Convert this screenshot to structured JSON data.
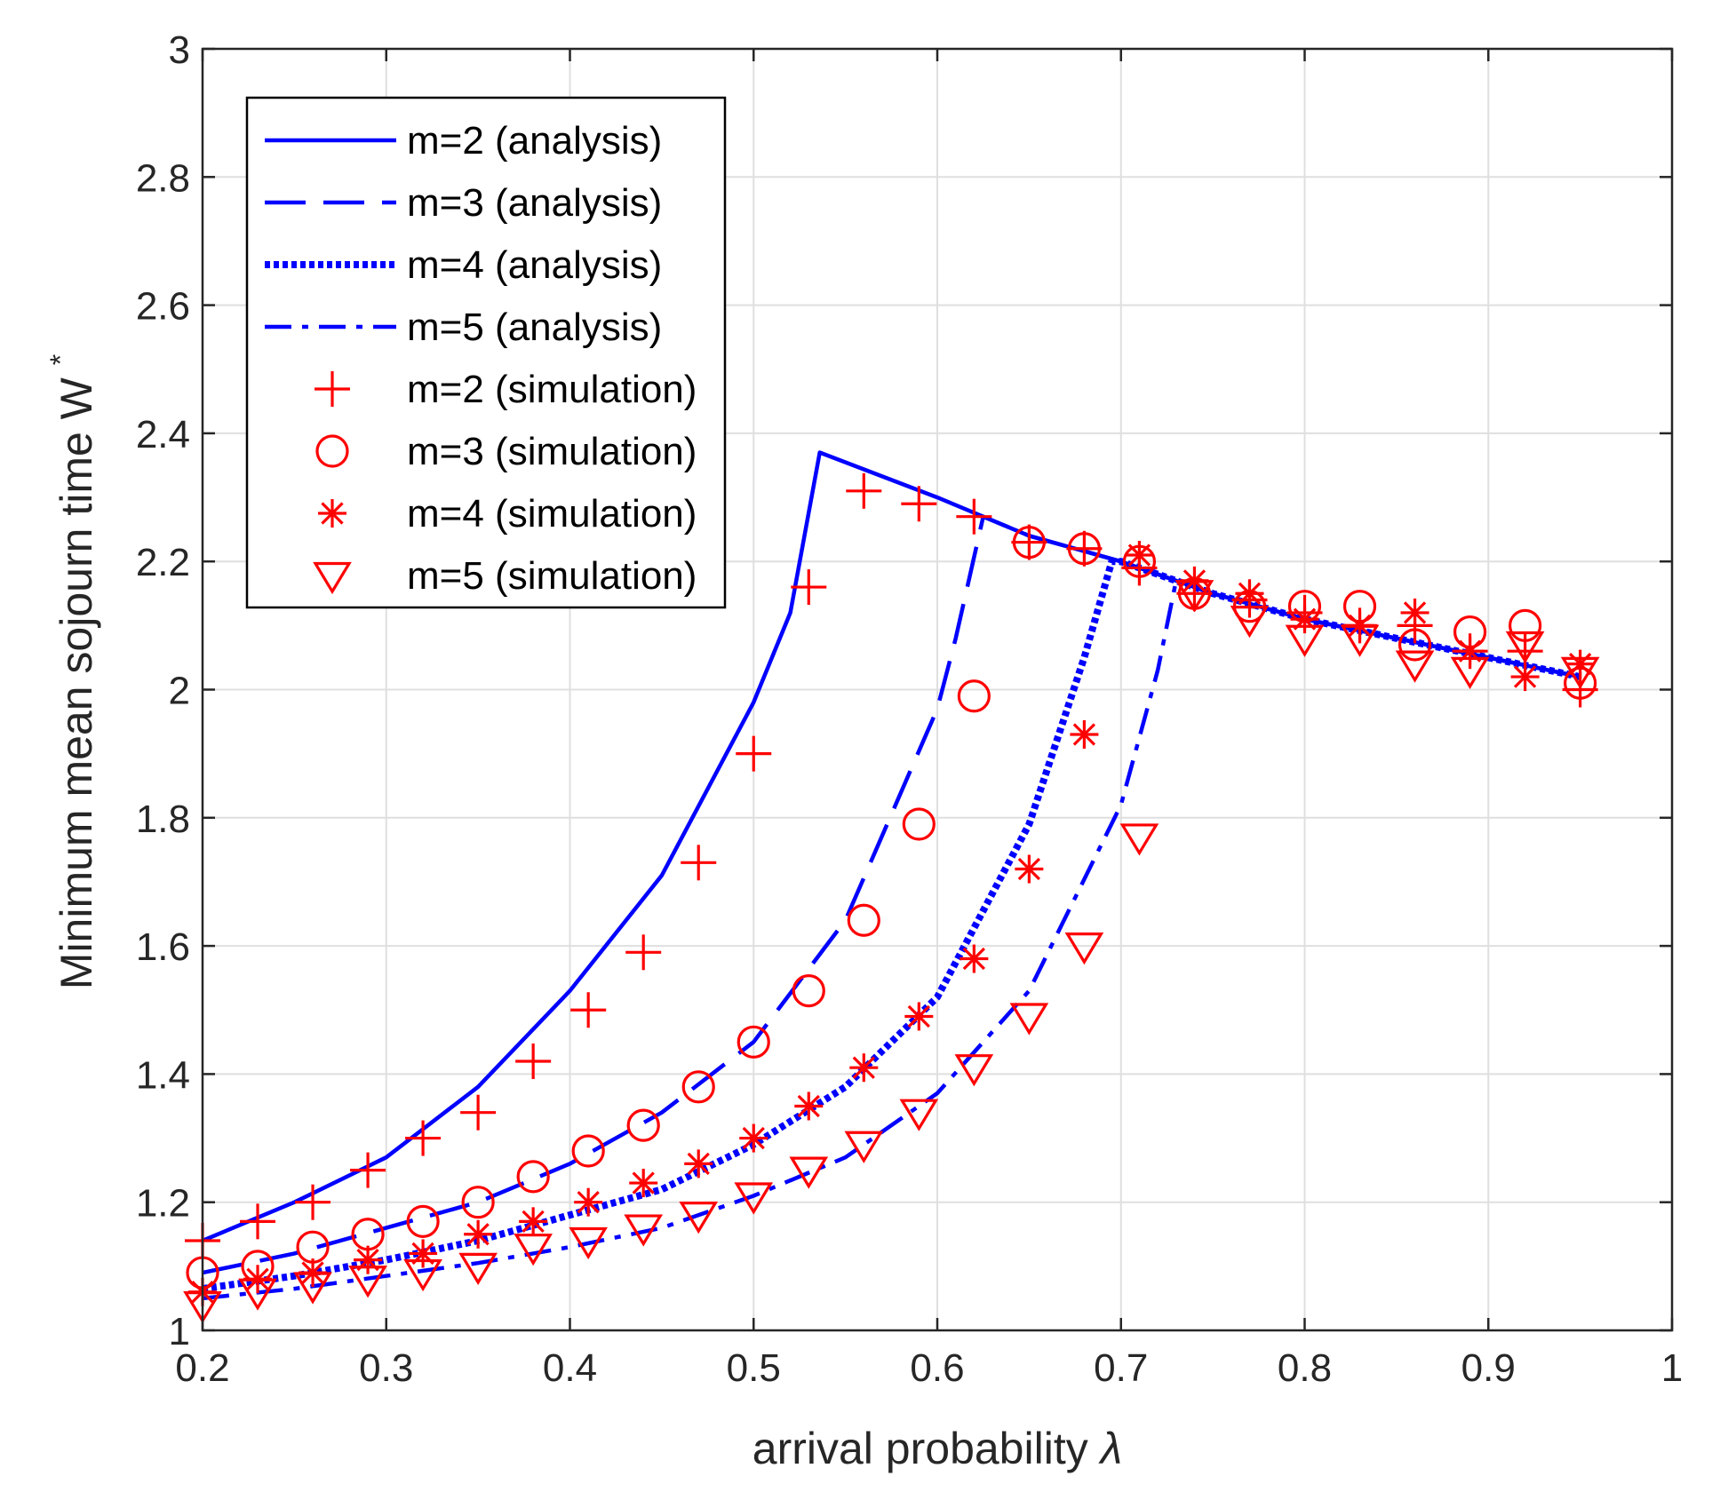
{
  "chart_data": {
    "type": "line",
    "xlabel": "arrival probability",
    "xlabel_symbol": "λ",
    "ylabel": "Minimum mean sojourn time W",
    "ylabel_superscript": "*",
    "xlim": [
      0.2,
      1
    ],
    "ylim": [
      1,
      3
    ],
    "xticks": [
      "0.2",
      "0.3",
      "0.4",
      "0.5",
      "0.6",
      "0.7",
      "0.8",
      "0.9",
      "1"
    ],
    "yticks": [
      "1",
      "1.2",
      "1.4",
      "1.6",
      "1.8",
      "2",
      "2.2",
      "2.4",
      "2.6",
      "2.8",
      "3"
    ],
    "grid": true,
    "legend_position": "top-left",
    "colors": {
      "analysis": "#0000ff",
      "simulation": "#ff0000",
      "axes": "#262626",
      "grid": "#dfdfdf"
    },
    "analysis": [
      {
        "name": "m=2 (analysis)",
        "style": "solid",
        "join_x": 0.536,
        "x": [
          0.2,
          0.25,
          0.3,
          0.35,
          0.4,
          0.45,
          0.5,
          0.52,
          0.536
        ],
        "y": [
          1.14,
          1.2,
          1.27,
          1.38,
          1.53,
          1.71,
          1.98,
          2.12,
          2.37
        ]
      },
      {
        "name": "m=3 (analysis)",
        "style": "dashed",
        "join_x": 0.625,
        "x": [
          0.2,
          0.25,
          0.3,
          0.35,
          0.4,
          0.45,
          0.5,
          0.55,
          0.6,
          0.61,
          0.625
        ],
        "y": [
          1.09,
          1.12,
          1.16,
          1.2,
          1.26,
          1.34,
          1.45,
          1.64,
          1.97,
          2.08,
          2.27
        ]
      },
      {
        "name": "m=4 (analysis)",
        "style": "dotted",
        "join_x": 0.695,
        "x": [
          0.2,
          0.25,
          0.3,
          0.35,
          0.4,
          0.45,
          0.5,
          0.55,
          0.6,
          0.65,
          0.68,
          0.695
        ],
        "y": [
          1.065,
          1.085,
          1.11,
          1.14,
          1.18,
          1.22,
          1.29,
          1.38,
          1.52,
          1.79,
          2.05,
          2.2
        ]
      },
      {
        "name": "m=5 (analysis)",
        "style": "dashdot",
        "join_x": 0.73,
        "x": [
          0.2,
          0.25,
          0.3,
          0.35,
          0.4,
          0.45,
          0.5,
          0.55,
          0.6,
          0.65,
          0.7,
          0.72,
          0.73
        ],
        "y": [
          1.05,
          1.065,
          1.085,
          1.105,
          1.13,
          1.16,
          1.21,
          1.27,
          1.37,
          1.53,
          1.82,
          2.03,
          2.17
        ]
      }
    ],
    "common_branch": {
      "x": [
        0.536,
        0.6,
        0.65,
        0.7,
        0.75,
        0.8,
        0.85,
        0.9,
        0.95
      ],
      "y": [
        2.37,
        2.3,
        2.24,
        2.2,
        2.15,
        2.11,
        2.08,
        2.05,
        2.02
      ]
    },
    "simulation": [
      {
        "name": "m=2 (simulation)",
        "marker": "plus",
        "x": [
          0.2,
          0.23,
          0.26,
          0.29,
          0.32,
          0.35,
          0.38,
          0.41,
          0.44,
          0.47,
          0.5,
          0.53,
          0.56,
          0.59,
          0.62,
          0.65,
          0.68,
          0.71,
          0.74,
          0.77,
          0.8,
          0.83,
          0.86,
          0.89,
          0.92,
          0.95
        ],
        "y": [
          1.14,
          1.17,
          1.2,
          1.25,
          1.3,
          1.34,
          1.42,
          1.5,
          1.59,
          1.73,
          1.9,
          2.16,
          2.31,
          2.29,
          2.27,
          2.23,
          2.22,
          2.19,
          2.15,
          2.14,
          2.12,
          2.1,
          2.1,
          2.06,
          2.06,
          2.0
        ]
      },
      {
        "name": "m=3 (simulation)",
        "marker": "circle",
        "x": [
          0.2,
          0.23,
          0.26,
          0.29,
          0.32,
          0.35,
          0.38,
          0.41,
          0.44,
          0.47,
          0.5,
          0.53,
          0.56,
          0.59,
          0.62,
          0.65,
          0.68,
          0.71,
          0.74,
          0.77,
          0.8,
          0.83,
          0.86,
          0.89,
          0.92,
          0.95
        ],
        "y": [
          1.09,
          1.1,
          1.13,
          1.15,
          1.17,
          1.2,
          1.24,
          1.28,
          1.32,
          1.38,
          1.45,
          1.53,
          1.64,
          1.79,
          1.99,
          2.23,
          2.22,
          2.2,
          2.15,
          2.13,
          2.13,
          2.13,
          2.07,
          2.09,
          2.1,
          2.01
        ]
      },
      {
        "name": "m=4 (simulation)",
        "marker": "asterisk",
        "x": [
          0.2,
          0.23,
          0.26,
          0.29,
          0.32,
          0.35,
          0.38,
          0.41,
          0.44,
          0.47,
          0.5,
          0.53,
          0.56,
          0.59,
          0.62,
          0.65,
          0.68,
          0.71,
          0.74,
          0.77,
          0.8,
          0.83,
          0.86,
          0.89,
          0.92,
          0.95
        ],
        "y": [
          1.06,
          1.08,
          1.09,
          1.11,
          1.12,
          1.15,
          1.17,
          1.2,
          1.23,
          1.26,
          1.3,
          1.35,
          1.41,
          1.49,
          1.58,
          1.72,
          1.93,
          2.21,
          2.17,
          2.15,
          2.11,
          2.1,
          2.12,
          2.06,
          2.02,
          2.04
        ]
      },
      {
        "name": "m=5 (simulation)",
        "marker": "triangle-down",
        "x": [
          0.2,
          0.23,
          0.26,
          0.29,
          0.32,
          0.35,
          0.38,
          0.41,
          0.44,
          0.47,
          0.5,
          0.53,
          0.56,
          0.59,
          0.62,
          0.65,
          0.68,
          0.71,
          0.74,
          0.77,
          0.8,
          0.83,
          0.86,
          0.89,
          0.92,
          0.95
        ],
        "y": [
          1.04,
          1.06,
          1.07,
          1.08,
          1.09,
          1.1,
          1.13,
          1.14,
          1.16,
          1.18,
          1.21,
          1.25,
          1.29,
          1.34,
          1.41,
          1.49,
          1.6,
          1.77,
          2.15,
          2.11,
          2.08,
          2.08,
          2.04,
          2.03,
          2.07,
          2.03
        ]
      }
    ]
  }
}
